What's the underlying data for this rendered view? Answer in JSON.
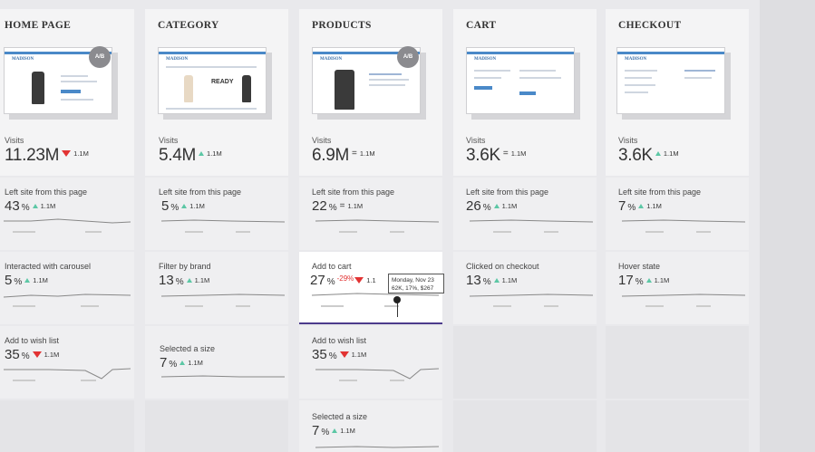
{
  "columns": [
    {
      "title": "HOME PAGE",
      "ab": "A/B",
      "visits_label": "Visits",
      "visits": "11.23M",
      "visits_delta": "1.1M",
      "visits_trend": "down",
      "metrics": [
        {
          "label": "Left site from this page",
          "value": "43",
          "unit": "%",
          "delta": "1.1M",
          "trend": "up"
        },
        {
          "label": "Interacted with carousel",
          "value": "5",
          "unit": "%",
          "delta": "1.1M",
          "trend": "up"
        },
        {
          "label": "Add to wish list",
          "value": "35",
          "unit": "%",
          "delta": "1.1M",
          "trend": "down"
        }
      ]
    },
    {
      "title": "CATEGORY",
      "visits_label": "Visits",
      "visits": "5.4M",
      "visits_delta": "1.1M",
      "visits_trend": "up",
      "metrics": [
        {
          "label": "Left site from this page",
          "value": "5",
          "unit": "%",
          "delta": "1.1M",
          "trend": "up"
        },
        {
          "label": "Filter by brand",
          "value": "13",
          "unit": "%",
          "delta": "1.1M",
          "trend": "up"
        },
        {
          "label": "Selected a size",
          "value": "7",
          "unit": "%",
          "delta": "1.1M",
          "trend": "up"
        }
      ]
    },
    {
      "title": "PRODUCTS",
      "ab": "A/B",
      "visits_label": "Visits",
      "visits": "6.9M",
      "visits_delta": "1.1M",
      "visits_trend": "equal",
      "metrics": [
        {
          "label": "Left site from this page",
          "value": "22",
          "unit": "%",
          "delta": "1.1M",
          "trend": "equal"
        },
        {
          "label": "Add to cart",
          "value": "27",
          "unit": "%",
          "extra": "-29%",
          "delta": "1.1",
          "trend": "down",
          "tooltip": {
            "line1": "Monday, Nov 23",
            "line2": "62K, 17%, $267"
          }
        },
        {
          "label": "Add to wish list",
          "value": "35",
          "unit": "%",
          "delta": "1.1M",
          "trend": "down"
        },
        {
          "label": "Selected a size",
          "value": "7",
          "unit": "%",
          "delta": "1.1M",
          "trend": "up"
        }
      ]
    },
    {
      "title": "CART",
      "visits_label": "Visits",
      "visits": "3.6K",
      "visits_delta": "1.1M",
      "visits_trend": "equal",
      "metrics": [
        {
          "label": "Left site from this page",
          "value": "26",
          "unit": "%",
          "delta": "1.1M",
          "trend": "up"
        },
        {
          "label": "Clicked on checkout",
          "value": "13",
          "unit": "%",
          "delta": "1.1M",
          "trend": "up"
        }
      ]
    },
    {
      "title": "CHECKOUT",
      "visits_label": "Visits",
      "visits": "3.6K",
      "visits_delta": "1.1M",
      "visits_trend": "up",
      "metrics": [
        {
          "label": "Left site from this page",
          "value": "7",
          "unit": "%",
          "delta": "1.1M",
          "trend": "up"
        },
        {
          "label": "Hover state",
          "value": "17",
          "unit": "%",
          "delta": "1.1M",
          "trend": "up"
        }
      ]
    }
  ],
  "thumb_brand": "MADISON",
  "thumb_headline": "READY",
  "colors": {
    "up": "#5cc7a5",
    "down": "#e23333",
    "active_border": "#4c3b8c",
    "thumb_nav": "#4a89c8"
  }
}
